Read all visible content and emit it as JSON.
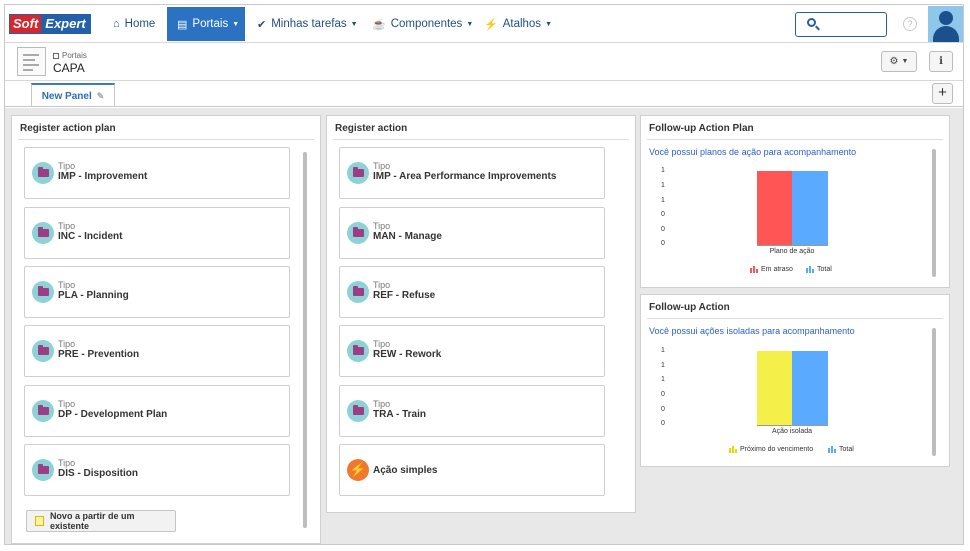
{
  "nav": {
    "logo_soft": "Soft",
    "logo_expert": "Expert",
    "items": [
      {
        "label": "Home"
      },
      {
        "label": "Portais"
      },
      {
        "label": "Minhas tarefas"
      },
      {
        "label": "Componentes"
      },
      {
        "label": "Atalhos"
      }
    ],
    "help": "?"
  },
  "header": {
    "breadcrumb": "Portais",
    "title": "CAPA"
  },
  "tabs": [
    {
      "label": "New Panel"
    }
  ],
  "register_action_plan": {
    "title": "Register action plan",
    "type_label": "Tipo",
    "items": [
      "IMP - Improvement",
      "INC - Incident",
      "PLA - Planning",
      "PRE - Prevention",
      "DP - Development Plan",
      "DIS - Disposition"
    ],
    "new_button": "Novo a partir de um existente"
  },
  "register_action": {
    "title": "Register action",
    "type_label": "Tipo",
    "items": [
      "IMP - Area Performance Improvements",
      "MAN - Manage",
      "REF - Refuse",
      "REW - Rework",
      "TRA - Train"
    ],
    "simple": "Ação simples"
  },
  "followup_plan": {
    "title": "Follow-up Action Plan",
    "subtitle": "Você possui planos de ação para acompanhamento",
    "yticks": [
      "1",
      "1",
      "1",
      "0",
      "0",
      "0"
    ],
    "category": "Plano de ação",
    "series": [
      {
        "name": "Em atraso",
        "color": "#ff5555",
        "value": 1
      },
      {
        "name": "Total",
        "color": "#5aabff",
        "value": 1
      }
    ]
  },
  "followup_action": {
    "title": "Follow-up Action",
    "subtitle": "Você possui ações isoladas para acompanhamento",
    "yticks": [
      "1",
      "1",
      "1",
      "0",
      "0",
      "0"
    ],
    "category": "Ação isolada",
    "series": [
      {
        "name": "Próximo do vencimento",
        "color": "#f5ef4a",
        "value": 1
      },
      {
        "name": "Total",
        "color": "#5aabff",
        "value": 1
      }
    ]
  }
}
